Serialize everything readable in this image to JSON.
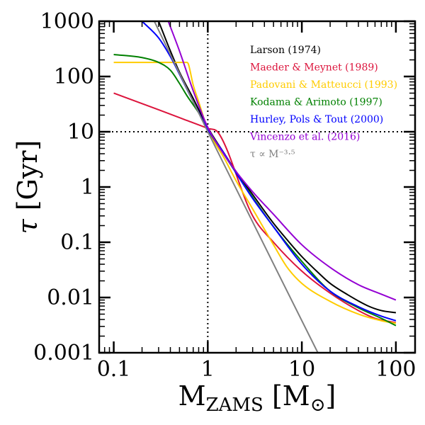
{
  "chart_data": {
    "type": "line",
    "xscale": "log",
    "yscale": "log",
    "xlim": [
      0.07,
      160
    ],
    "ylim": [
      0.001,
      1000
    ],
    "xticks": [
      {
        "value": 0.1,
        "label": "0.1"
      },
      {
        "value": 1,
        "label": "1"
      },
      {
        "value": 10,
        "label": "10"
      },
      {
        "value": 100,
        "label": "100"
      }
    ],
    "yticks": [
      {
        "value": 0.001,
        "label": "0.001"
      },
      {
        "value": 0.01,
        "label": "0.01"
      },
      {
        "value": 0.1,
        "label": "0.1"
      },
      {
        "value": 1,
        "label": "1"
      },
      {
        "value": 10,
        "label": "10"
      },
      {
        "value": 100,
        "label": "100"
      },
      {
        "value": 1000,
        "label": "1000"
      }
    ],
    "xlabel": {
      "main": "M",
      "sub": "ZAMS",
      "unit_open": " [M",
      "unit_sym": "⊙",
      "unit_close": "]"
    },
    "ylabel": {
      "symbol": "τ",
      "unit": " [Gyr]"
    },
    "reference_lines": [
      {
        "orientation": "vertical",
        "value": 1,
        "style": "dotted",
        "color": "#000000"
      },
      {
        "orientation": "horizontal",
        "value": 10,
        "style": "dotted",
        "color": "#000000"
      }
    ],
    "legend_placement": "upper-right",
    "series": [
      {
        "name": "Larson (1974)",
        "color": "#000000",
        "points": [
          [
            0.3,
            1000
          ],
          [
            0.4,
            290
          ],
          [
            0.5,
            120
          ],
          [
            0.7,
            40
          ],
          [
            1,
            12
          ],
          [
            1.5,
            4
          ],
          [
            2,
            1.9
          ],
          [
            3,
            0.73
          ],
          [
            5,
            0.22
          ],
          [
            7,
            0.11
          ],
          [
            10,
            0.055
          ],
          [
            15,
            0.028
          ],
          [
            20,
            0.018
          ],
          [
            30,
            0.0115
          ],
          [
            50,
            0.0071
          ],
          [
            70,
            0.0058
          ],
          [
            100,
            0.0053
          ]
        ]
      },
      {
        "name": "Maeder & Meynet (1989)",
        "color": "#dc143c",
        "points": [
          [
            0.1,
            50
          ],
          [
            0.3,
            25
          ],
          [
            0.6,
            16
          ],
          [
            1,
            11.5
          ],
          [
            1.3,
            9.5
          ],
          [
            3,
            0.3
          ],
          [
            5,
            0.1
          ],
          [
            10,
            0.03
          ],
          [
            20,
            0.012
          ],
          [
            40,
            0.0058
          ],
          [
            60,
            0.0042
          ],
          [
            100,
            0.0035
          ]
        ]
      },
      {
        "name": "Padovani & Matteucci (1993)",
        "color": "#ffcc00",
        "points": [
          [
            0.1,
            180
          ],
          [
            0.6,
            180
          ],
          [
            0.62,
            170
          ],
          [
            0.7,
            70
          ],
          [
            0.8,
            35
          ],
          [
            1,
            11
          ],
          [
            1.5,
            3.3
          ],
          [
            2,
            1.3
          ],
          [
            3,
            0.4
          ],
          [
            5,
            0.09
          ],
          [
            7,
            0.035
          ],
          [
            10,
            0.018
          ],
          [
            20,
            0.0085
          ],
          [
            40,
            0.005
          ],
          [
            70,
            0.0038
          ],
          [
            100,
            0.0034
          ]
        ]
      },
      {
        "name": "Kodama & Arimoto (1997)",
        "color": "#008000",
        "points": [
          [
            0.1,
            250
          ],
          [
            0.2,
            220
          ],
          [
            0.3,
            180
          ],
          [
            0.4,
            130
          ],
          [
            0.5,
            75
          ],
          [
            0.6,
            45
          ],
          [
            0.8,
            22
          ],
          [
            1,
            11
          ],
          [
            1.5,
            3.8
          ],
          [
            2,
            1.8
          ],
          [
            3,
            0.65
          ],
          [
            5,
            0.19
          ],
          [
            10,
            0.045
          ],
          [
            20,
            0.013
          ],
          [
            40,
            0.0065
          ],
          [
            70,
            0.0042
          ],
          [
            100,
            0.0031
          ]
        ]
      },
      {
        "name": "Hurley, Pols & Tout (2000)",
        "color": "#0000ff",
        "points": [
          [
            0.2,
            1000
          ],
          [
            0.3,
            500
          ],
          [
            0.4,
            230
          ],
          [
            0.5,
            110
          ],
          [
            0.7,
            35
          ],
          [
            1,
            11
          ],
          [
            1.5,
            4
          ],
          [
            2,
            1.8
          ],
          [
            3,
            0.62
          ],
          [
            5,
            0.19
          ],
          [
            10,
            0.04
          ],
          [
            20,
            0.013
          ],
          [
            40,
            0.0068
          ],
          [
            70,
            0.0046
          ],
          [
            100,
            0.0038
          ]
        ]
      },
      {
        "name": "Vincenzo et al. (2016)",
        "color": "#9400d3",
        "points": [
          [
            0.38,
            1000
          ],
          [
            0.5,
            290
          ],
          [
            0.7,
            55
          ],
          [
            1,
            12
          ],
          [
            1.5,
            3.8
          ],
          [
            2,
            1.9
          ],
          [
            3,
            0.82
          ],
          [
            5,
            0.32
          ],
          [
            10,
            0.09
          ],
          [
            20,
            0.035
          ],
          [
            40,
            0.017
          ],
          [
            70,
            0.0115
          ],
          [
            100,
            0.009
          ]
        ]
      },
      {
        "name": "τ ∝ M⁻³·⁵",
        "color": "#808080",
        "points": [
          [
            0.27,
            1000
          ],
          [
            1,
            10
          ],
          [
            14.8,
            0.001
          ]
        ]
      }
    ]
  }
}
